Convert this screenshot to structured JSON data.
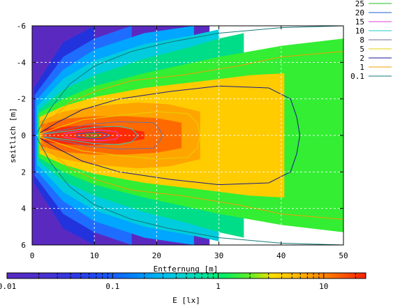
{
  "chart_data": {
    "type": "heatmap",
    "xlabel": "Entfernung [m]",
    "ylabel": "seitlich [m]",
    "colorbar_label": "E [lx]",
    "x_ticks": [
      0,
      10,
      20,
      30,
      40,
      50
    ],
    "y_ticks": [
      -6,
      -4,
      -2,
      0,
      2,
      4,
      6
    ],
    "xlim": [
      0,
      50
    ],
    "ylim": [
      -6,
      6
    ],
    "y_axis_inverted": true,
    "grid": true,
    "colorbar": {
      "scale": "log",
      "range": [
        0.01,
        25
      ],
      "tick_labels": [
        "0.01",
        "0.1",
        "1",
        "10"
      ],
      "tick_values": [
        0.01,
        0.1,
        1,
        10
      ]
    },
    "legend_position": "top-right outside",
    "series": [
      {
        "name": "25",
        "color": "#22bb22"
      },
      {
        "name": "20",
        "color": "#1e5fd8"
      },
      {
        "name": "15",
        "color": "#e040e0"
      },
      {
        "name": "10",
        "color": "#20c8c8"
      },
      {
        "name": "8",
        "color": "#6f6f9f"
      },
      {
        "name": "5",
        "color": "#e6d200"
      },
      {
        "name": "2",
        "color": "#1a1a8c"
      },
      {
        "name": "1",
        "color": "#f0a000"
      },
      {
        "name": "0.1",
        "color": "#157a7a"
      }
    ],
    "contours": [
      {
        "level": 0.1,
        "color": "#157a7a",
        "half_width": [
          [
            0.8,
            0.15
          ],
          [
            3,
            1.5
          ],
          [
            6,
            2.8
          ],
          [
            10,
            3.8
          ],
          [
            16,
            4.6
          ],
          [
            22,
            5.1
          ],
          [
            30,
            5.6
          ],
          [
            40,
            5.9
          ],
          [
            50,
            6.0
          ]
        ]
      },
      {
        "level": 1,
        "color": "#f0a000",
        "half_width": [
          [
            1.2,
            0.2
          ],
          [
            3,
            0.9
          ],
          [
            6,
            1.8
          ],
          [
            10,
            2.4
          ],
          [
            16,
            3.0
          ],
          [
            24,
            3.3
          ],
          [
            33,
            3.8
          ],
          [
            40,
            4.3
          ],
          [
            50,
            4.6
          ]
        ]
      },
      {
        "level": 2,
        "color": "#1a1a8c",
        "half_width": [
          [
            1.3,
            0.15
          ],
          [
            4,
            0.7
          ],
          [
            8,
            1.4
          ],
          [
            14,
            2.0
          ],
          [
            22,
            2.4
          ],
          [
            30,
            2.7
          ],
          [
            38,
            2.6
          ],
          [
            41.5,
            2.0
          ],
          [
            42.5,
            1.0
          ],
          [
            43,
            0.0
          ]
        ]
      },
      {
        "level": 5,
        "color": "#e6d200",
        "half_width": [
          [
            1.5,
            0.1
          ],
          [
            4,
            0.4
          ],
          [
            8,
            0.85
          ],
          [
            14,
            1.1
          ],
          [
            20,
            1.3
          ],
          [
            25,
            1.2
          ],
          [
            26.5,
            0.7
          ],
          [
            27,
            0.0
          ]
        ]
      },
      {
        "level": 8,
        "color": "#6f6f9f",
        "half_width": [
          [
            1.7,
            0.1
          ],
          [
            5,
            0.3
          ],
          [
            9,
            0.6
          ],
          [
            14,
            0.75
          ],
          [
            19.5,
            0.7
          ],
          [
            20.5,
            0.3
          ],
          [
            21,
            0.0
          ]
        ]
      },
      {
        "level": 10,
        "color": "#20c8c8",
        "half_width": [
          [
            2,
            0.08
          ],
          [
            6,
            0.25
          ],
          [
            10,
            0.45
          ],
          [
            14,
            0.5
          ],
          [
            16,
            0.35
          ],
          [
            17,
            0.0
          ]
        ]
      },
      {
        "level": 15,
        "color": "#e040e0",
        "half_width": [
          [
            5,
            0.08
          ],
          [
            8,
            0.25
          ],
          [
            11,
            0.3
          ],
          [
            13.5,
            0.2
          ],
          [
            14,
            0.0
          ]
        ]
      },
      {
        "level": 20,
        "color": "#1e5fd8",
        "half_width": [
          [
            7,
            0.06
          ],
          [
            9,
            0.15
          ],
          [
            11,
            0.18
          ],
          [
            12.5,
            0.0
          ]
        ]
      },
      {
        "level": 25,
        "color": "#22bb22",
        "half_width": [
          [
            8.5,
            0.05
          ],
          [
            10,
            0.1
          ],
          [
            11,
            0.0
          ]
        ]
      }
    ],
    "fill_bands": [
      {
        "min_lux": 20,
        "color": "#ff2a00",
        "half_width": [
          [
            2,
            0.35
          ],
          [
            6,
            0.5
          ],
          [
            10,
            0.55
          ],
          [
            14,
            0.45
          ],
          [
            18,
            0.2
          ]
        ]
      },
      {
        "min_lux": 10,
        "color": "#ff6a00",
        "half_width": [
          [
            1.5,
            0.6
          ],
          [
            5,
            0.9
          ],
          [
            10,
            1.05
          ],
          [
            15,
            1.05
          ],
          [
            20,
            0.95
          ],
          [
            24,
            0.7
          ]
        ]
      },
      {
        "min_lux": 5,
        "color": "#ffa500",
        "half_width": [
          [
            1.3,
            0.8
          ],
          [
            5,
            1.3
          ],
          [
            10,
            1.6
          ],
          [
            17,
            1.8
          ],
          [
            22,
            1.7
          ],
          [
            27,
            1.3
          ]
        ]
      },
      {
        "min_lux": 2,
        "color": "#ffcc00",
        "half_width": [
          [
            1.2,
            1.0
          ],
          [
            5,
            1.6
          ],
          [
            10,
            2.1
          ],
          [
            18,
            2.6
          ],
          [
            28,
            3.0
          ],
          [
            35,
            3.3
          ],
          [
            40.5,
            3.4
          ]
        ]
      },
      {
        "min_lux": 1,
        "color": "#33ee33",
        "half_width": [
          [
            1,
            1.2
          ],
          [
            5,
            2.0
          ],
          [
            10,
            2.7
          ],
          [
            18,
            3.4
          ],
          [
            30,
            4.3
          ],
          [
            40,
            4.9
          ],
          [
            50,
            5.3
          ]
        ]
      },
      {
        "min_lux": 0.5,
        "color": "#00dd88",
        "half_width": [
          [
            1,
            1.4
          ],
          [
            5,
            2.5
          ],
          [
            10,
            3.3
          ],
          [
            18,
            4.2
          ],
          [
            25,
            4.8
          ],
          [
            30,
            5.3
          ],
          [
            34,
            5.6
          ]
        ]
      },
      {
        "min_lux": 0.2,
        "color": "#00ccdd",
        "half_width": [
          [
            0.8,
            1.6
          ],
          [
            5,
            3.1
          ],
          [
            10,
            4.1
          ],
          [
            18,
            5.0
          ],
          [
            26,
            5.5
          ],
          [
            30,
            5.8
          ]
        ]
      },
      {
        "min_lux": 0.1,
        "color": "#00a6ff",
        "half_width": [
          [
            0.6,
            1.9
          ],
          [
            5,
            3.6
          ],
          [
            10,
            4.7
          ],
          [
            18,
            5.6
          ],
          [
            26,
            6.0
          ]
        ]
      },
      {
        "min_lux": 0.05,
        "color": "#1f6dff",
        "half_width": [
          [
            0.4,
            2.2
          ],
          [
            5,
            4.3
          ],
          [
            10,
            5.3
          ],
          [
            16,
            6.0
          ]
        ]
      },
      {
        "min_lux": 0.02,
        "color": "#2233dd",
        "half_width": [
          [
            0.3,
            2.6
          ],
          [
            5,
            5.1
          ],
          [
            10,
            6.0
          ]
        ]
      }
    ],
    "background_color": "#5a2ac0"
  }
}
